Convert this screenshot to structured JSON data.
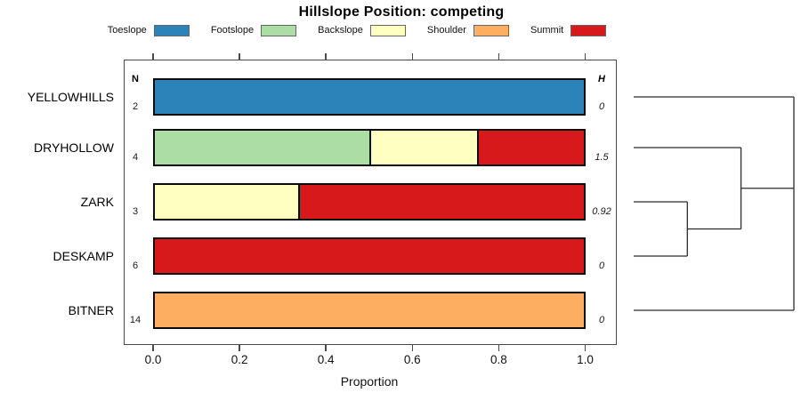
{
  "chart_data": {
    "type": "bar",
    "subtype": "horizontal-stacked-proportion-with-dendrogram",
    "title": "Hillslope Position: competing",
    "xlabel": "Proportion",
    "xlim": [
      0,
      1
    ],
    "x_ticks": [
      "0.0",
      "0.2",
      "0.4",
      "0.6",
      "0.8",
      "1.0"
    ],
    "grid": false,
    "legend_position": "top",
    "legend": [
      {
        "label": "Toeslope",
        "color": "#2B83BA"
      },
      {
        "label": "Footslope",
        "color": "#ABDDA4"
      },
      {
        "label": "Backslope",
        "color": "#FFFFBF"
      },
      {
        "label": "Shoulder",
        "color": "#FDAE61"
      },
      {
        "label": "Summit",
        "color": "#D7191C"
      }
    ],
    "columns": {
      "left_header": "N",
      "right_header": "H"
    },
    "rows": [
      {
        "label": "YELLOWHILLS",
        "n": "2",
        "h": "0",
        "segments": [
          {
            "category": "Toeslope",
            "proportion": 1.0
          }
        ]
      },
      {
        "label": "DRYHOLLOW",
        "n": "4",
        "h": "1.5",
        "segments": [
          {
            "category": "Footslope",
            "proportion": 0.5
          },
          {
            "category": "Backslope",
            "proportion": 0.25
          },
          {
            "category": "Summit",
            "proportion": 0.25
          }
        ]
      },
      {
        "label": "ZARK",
        "n": "3",
        "h": "0.92",
        "segments": [
          {
            "category": "Backslope",
            "proportion": 0.3333
          },
          {
            "category": "Summit",
            "proportion": 0.6667
          }
        ]
      },
      {
        "label": "DESKAMP",
        "n": "6",
        "h": "0",
        "segments": [
          {
            "category": "Summit",
            "proportion": 1.0
          }
        ]
      },
      {
        "label": "BITNER",
        "n": "14",
        "h": "0",
        "segments": [
          {
            "category": "Shoulder",
            "proportion": 1.0
          }
        ]
      }
    ],
    "dendrogram": {
      "orientation": "right",
      "newick": "(YELLOWHILLS,((ZARK,DESKAMP),DRYHOLLOW),BITNER);",
      "merges": [
        {
          "members": [
            "ZARK",
            "DESKAMP"
          ],
          "height": 0.335
        },
        {
          "members": [
            "merge0",
            "DRYHOLLOW"
          ],
          "height": 0.67
        },
        {
          "members": [
            "YELLOWHILLS",
            "merge1",
            "BITNER"
          ],
          "height": 1.0
        }
      ]
    }
  }
}
